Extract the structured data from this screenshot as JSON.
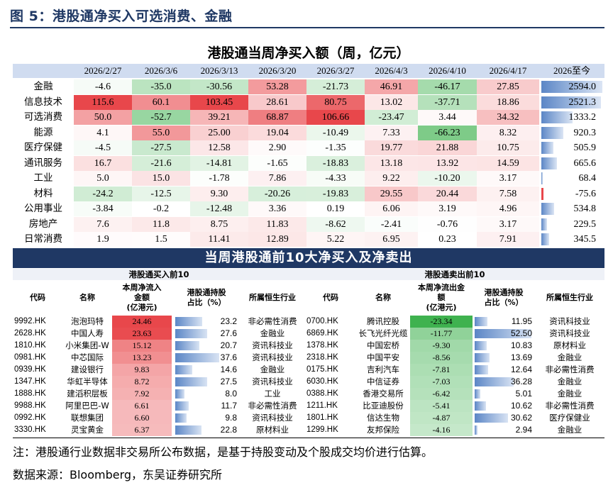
{
  "figure_title": "图 5：港股通净买入可选消费、金融",
  "chart_data": [
    {
      "type": "table",
      "title": "港股通当周净买入额（周，亿元）",
      "columns": [
        "2026/2/27",
        "2026/3/6",
        "2026/3/13",
        "2026/3/20",
        "2026/3/27",
        "2026/4/3",
        "2026/4/10",
        "2026/4/17",
        "2026至今"
      ],
      "rows": [
        {
          "sector": "金融",
          "weekly": [
            -4.6,
            -35.0,
            -30.56,
            53.28,
            -21.73,
            46.91,
            -46.17,
            27.85
          ],
          "ytd": 2594.0,
          "weekly_text": [
            "-4.6",
            "-35.0",
            "-30.56",
            "53.28",
            "-21.73",
            "46.91",
            "-46.17",
            "27.85"
          ],
          "ytd_text": "2594.0"
        },
        {
          "sector": "信息技术",
          "weekly": [
            115.6,
            60.1,
            103.45,
            28.61,
            80.75,
            13.02,
            -37.71,
            18.86
          ],
          "ytd": 2521.3,
          "weekly_text": [
            "115.6",
            "60.1",
            "103.45",
            "28.61",
            "80.75",
            "13.02",
            "-37.71",
            "18.86"
          ],
          "ytd_text": "2521.3"
        },
        {
          "sector": "可选消费",
          "weekly": [
            50.0,
            -52.7,
            39.21,
            68.87,
            106.66,
            -23.47,
            3.44,
            34.32
          ],
          "ytd": 1333.2,
          "weekly_text": [
            "50.0",
            "-52.7",
            "39.21",
            "68.87",
            "106.66",
            "-23.47",
            "3.44",
            "34.32"
          ],
          "ytd_text": "1333.2"
        },
        {
          "sector": "能源",
          "weekly": [
            4.1,
            55.0,
            25.0,
            19.04,
            -10.49,
            7.33,
            -66.23,
            8.32
          ],
          "ytd": 920.3,
          "weekly_text": [
            "4.1",
            "55.0",
            "25.00",
            "19.04",
            "-10.49",
            "7.33",
            "-66.23",
            "8.32"
          ],
          "ytd_text": "920.3"
        },
        {
          "sector": "医疗保健",
          "weekly": [
            -4.5,
            -27.5,
            12.58,
            2.9,
            -1.35,
            19.77,
            21.88,
            10.75
          ],
          "ytd": 505.9,
          "weekly_text": [
            "-4.5",
            "-27.5",
            "12.58",
            "2.90",
            "-1.35",
            "19.77",
            "21.88",
            "10.75"
          ],
          "ytd_text": "505.9"
        },
        {
          "sector": "通讯服务",
          "weekly": [
            16.7,
            -21.6,
            -14.81,
            -1.65,
            -18.83,
            13.18,
            13.92,
            14.59
          ],
          "ytd": 665.6,
          "weekly_text": [
            "16.7",
            "-21.6",
            "-14.81",
            "-1.65",
            "-18.83",
            "13.18",
            "13.92",
            "14.59"
          ],
          "ytd_text": "665.6"
        },
        {
          "sector": "工业",
          "weekly": [
            5.0,
            15.0,
            -1.78,
            7.86,
            -4.33,
            9.22,
            -10.2,
            3.17
          ],
          "ytd": 68.4,
          "weekly_text": [
            "5.0",
            "15.0",
            "-1.78",
            "7.86",
            "-4.33",
            "9.22",
            "-10.20",
            "3.17"
          ],
          "ytd_text": "68.4"
        },
        {
          "sector": "材料",
          "weekly": [
            -24.2,
            -12.5,
            9.3,
            -20.26,
            -19.83,
            29.55,
            20.44,
            7.58
          ],
          "ytd": -75.6,
          "weekly_text": [
            "-24.2",
            "-12.5",
            "9.30",
            "-20.26",
            "-19.83",
            "29.55",
            "20.44",
            "7.58"
          ],
          "ytd_text": "-75.6"
        },
        {
          "sector": "公用事业",
          "weekly": [
            -3.84,
            -0.2,
            -12.48,
            3.36,
            0.19,
            6.06,
            3.19,
            4.96
          ],
          "ytd": 534.8,
          "weekly_text": [
            "-3.84",
            "-0.2",
            "-12.48",
            "3.36",
            "0.19",
            "6.06",
            "3.19",
            "4.96"
          ],
          "ytd_text": "534.8"
        },
        {
          "sector": "房地产",
          "weekly": [
            7.6,
            11.8,
            8.75,
            11.83,
            -8.62,
            -2.41,
            -0.76,
            3.17
          ],
          "ytd": 229.5,
          "weekly_text": [
            "7.6",
            "11.8",
            "8.75",
            "11.83",
            "-8.62",
            "-2.41",
            "-0.76",
            "3.17"
          ],
          "ytd_text": "229.5"
        },
        {
          "sector": "日常消费",
          "weekly": [
            1.9,
            1.5,
            11.41,
            12.89,
            5.22,
            6.95,
            0.23,
            7.91
          ],
          "ytd": 345.5,
          "weekly_text": [
            "1.9",
            "1.5",
            "11.41",
            "12.89",
            "5.22",
            "6.95",
            "0.23",
            "7.91"
          ],
          "ytd_text": "345.5"
        }
      ]
    },
    {
      "type": "table",
      "title": "当周港股通前10大净买入及净卖出",
      "buy": {
        "subtitle": "港股通买入前10",
        "headers": [
          "代码",
          "名称",
          "本周净流入\n金额\n(亿港元)",
          "港股通持股\n占比（%）",
          "所属恒生行业"
        ],
        "rows": [
          {
            "code": "9992.HK",
            "name": "泡泡玛特",
            "flow": 24.46,
            "flow_text": "24.46",
            "hold": 23.2,
            "hold_text": "23.2",
            "industry": "非必需性消费"
          },
          {
            "code": "2628.HK",
            "name": "中国人寿",
            "flow": 23.63,
            "flow_text": "23.63",
            "hold": 27.6,
            "hold_text": "27.6",
            "industry": "金融业"
          },
          {
            "code": "1810.HK",
            "name": "小米集团-W",
            "flow": 15.12,
            "flow_text": "15.12",
            "hold": 20.7,
            "hold_text": "20.7",
            "industry": "资讯科技业"
          },
          {
            "code": "0981.HK",
            "name": "中芯国际",
            "flow": 13.23,
            "flow_text": "13.23",
            "hold": 37.6,
            "hold_text": "37.6",
            "industry": "资讯科技业"
          },
          {
            "code": "0939.HK",
            "name": "建设银行",
            "flow": 9.83,
            "flow_text": "9.83",
            "hold": 14.6,
            "hold_text": "14.6",
            "industry": "金融业"
          },
          {
            "code": "1347.HK",
            "name": "华虹半导体",
            "flow": 8.72,
            "flow_text": "8.72",
            "hold": 27.5,
            "hold_text": "27.5",
            "industry": "资讯科技业"
          },
          {
            "code": "1888.HK",
            "name": "建滔积层板",
            "flow": 7.92,
            "flow_text": "7.92",
            "hold": 8.0,
            "hold_text": "8.0",
            "industry": "工业"
          },
          {
            "code": "9988.HK",
            "name": "阿里巴巴-W",
            "flow": 6.61,
            "flow_text": "6.61",
            "hold": 11.7,
            "hold_text": "11.7",
            "industry": "非必需性消费"
          },
          {
            "code": "0992.HK",
            "name": "联想集团",
            "flow": 6.6,
            "flow_text": "6.60",
            "hold": 9.8,
            "hold_text": "9.8",
            "industry": "资讯科技业"
          },
          {
            "code": "3330.HK",
            "name": "灵宝黄金",
            "flow": 6.37,
            "flow_text": "6.37",
            "hold": 22.8,
            "hold_text": "22.8",
            "industry": "原材料业"
          }
        ]
      },
      "sell": {
        "subtitle": "港股通卖出前10",
        "headers": [
          "代码",
          "名称",
          "本周净流出金\n额\n(亿港元)",
          "港股通持股\n占比（%）",
          "所属恒生行业"
        ],
        "rows": [
          {
            "code": "0700.HK",
            "name": "腾讯控股",
            "flow": -23.34,
            "flow_text": "-23.34",
            "hold": 11.95,
            "hold_text": "11.95",
            "industry": "资讯科技业"
          },
          {
            "code": "6869.HK",
            "name": "长飞光纤光缆",
            "flow": -11.77,
            "flow_text": "-11.77",
            "hold": 52.5,
            "hold_text": "52.50",
            "industry": "资讯科技业"
          },
          {
            "code": "1378.HK",
            "name": "中国宏桥",
            "flow": -9.3,
            "flow_text": "-9.30",
            "hold": 10.83,
            "hold_text": "10.83",
            "industry": "原材料业"
          },
          {
            "code": "2318.HK",
            "name": "中国平安",
            "flow": -8.56,
            "flow_text": "-8.56",
            "hold": 13.69,
            "hold_text": "13.69",
            "industry": "金融业"
          },
          {
            "code": "0175.HK",
            "name": "吉利汽车",
            "flow": -7.81,
            "flow_text": "-7.81",
            "hold": 12.64,
            "hold_text": "12.64",
            "industry": "非必需性消费"
          },
          {
            "code": "6030.HK",
            "name": "中信证券",
            "flow": -7.03,
            "flow_text": "-7.03",
            "hold": 36.28,
            "hold_text": "36.28",
            "industry": "金融业"
          },
          {
            "code": "0388.HK",
            "name": "香港交易所",
            "flow": -6.42,
            "flow_text": "-6.42",
            "hold": 5.01,
            "hold_text": "5.01",
            "industry": "金融业"
          },
          {
            "code": "1211.HK",
            "name": "比亚迪股份",
            "flow": -5.41,
            "flow_text": "-5.41",
            "hold": 10.62,
            "hold_text": "10.62",
            "industry": "非必需性消费"
          },
          {
            "code": "1801.HK",
            "name": "信达生物",
            "flow": -4.87,
            "flow_text": "-4.87",
            "hold": 30.62,
            "hold_text": "30.62",
            "industry": "医疗保健业"
          },
          {
            "code": "1299.HK",
            "name": "友邦保险",
            "flow": -4.16,
            "flow_text": "-4.16",
            "hold": 2.94,
            "hold_text": "2.94",
            "industry": "金融业"
          }
        ]
      }
    }
  ],
  "note": "注：港股通行业数据非交易所公布数据，是基于持股变动及个股成交均价进行估算。",
  "source": "数据来源：Bloomberg，东吴证券研究所",
  "colors": {
    "positive": "#e8474b",
    "negative": "#3fb24f",
    "header_bg": "#d0dcf0",
    "banner": "#1f3864",
    "cum_bar": "#5b86c6"
  }
}
